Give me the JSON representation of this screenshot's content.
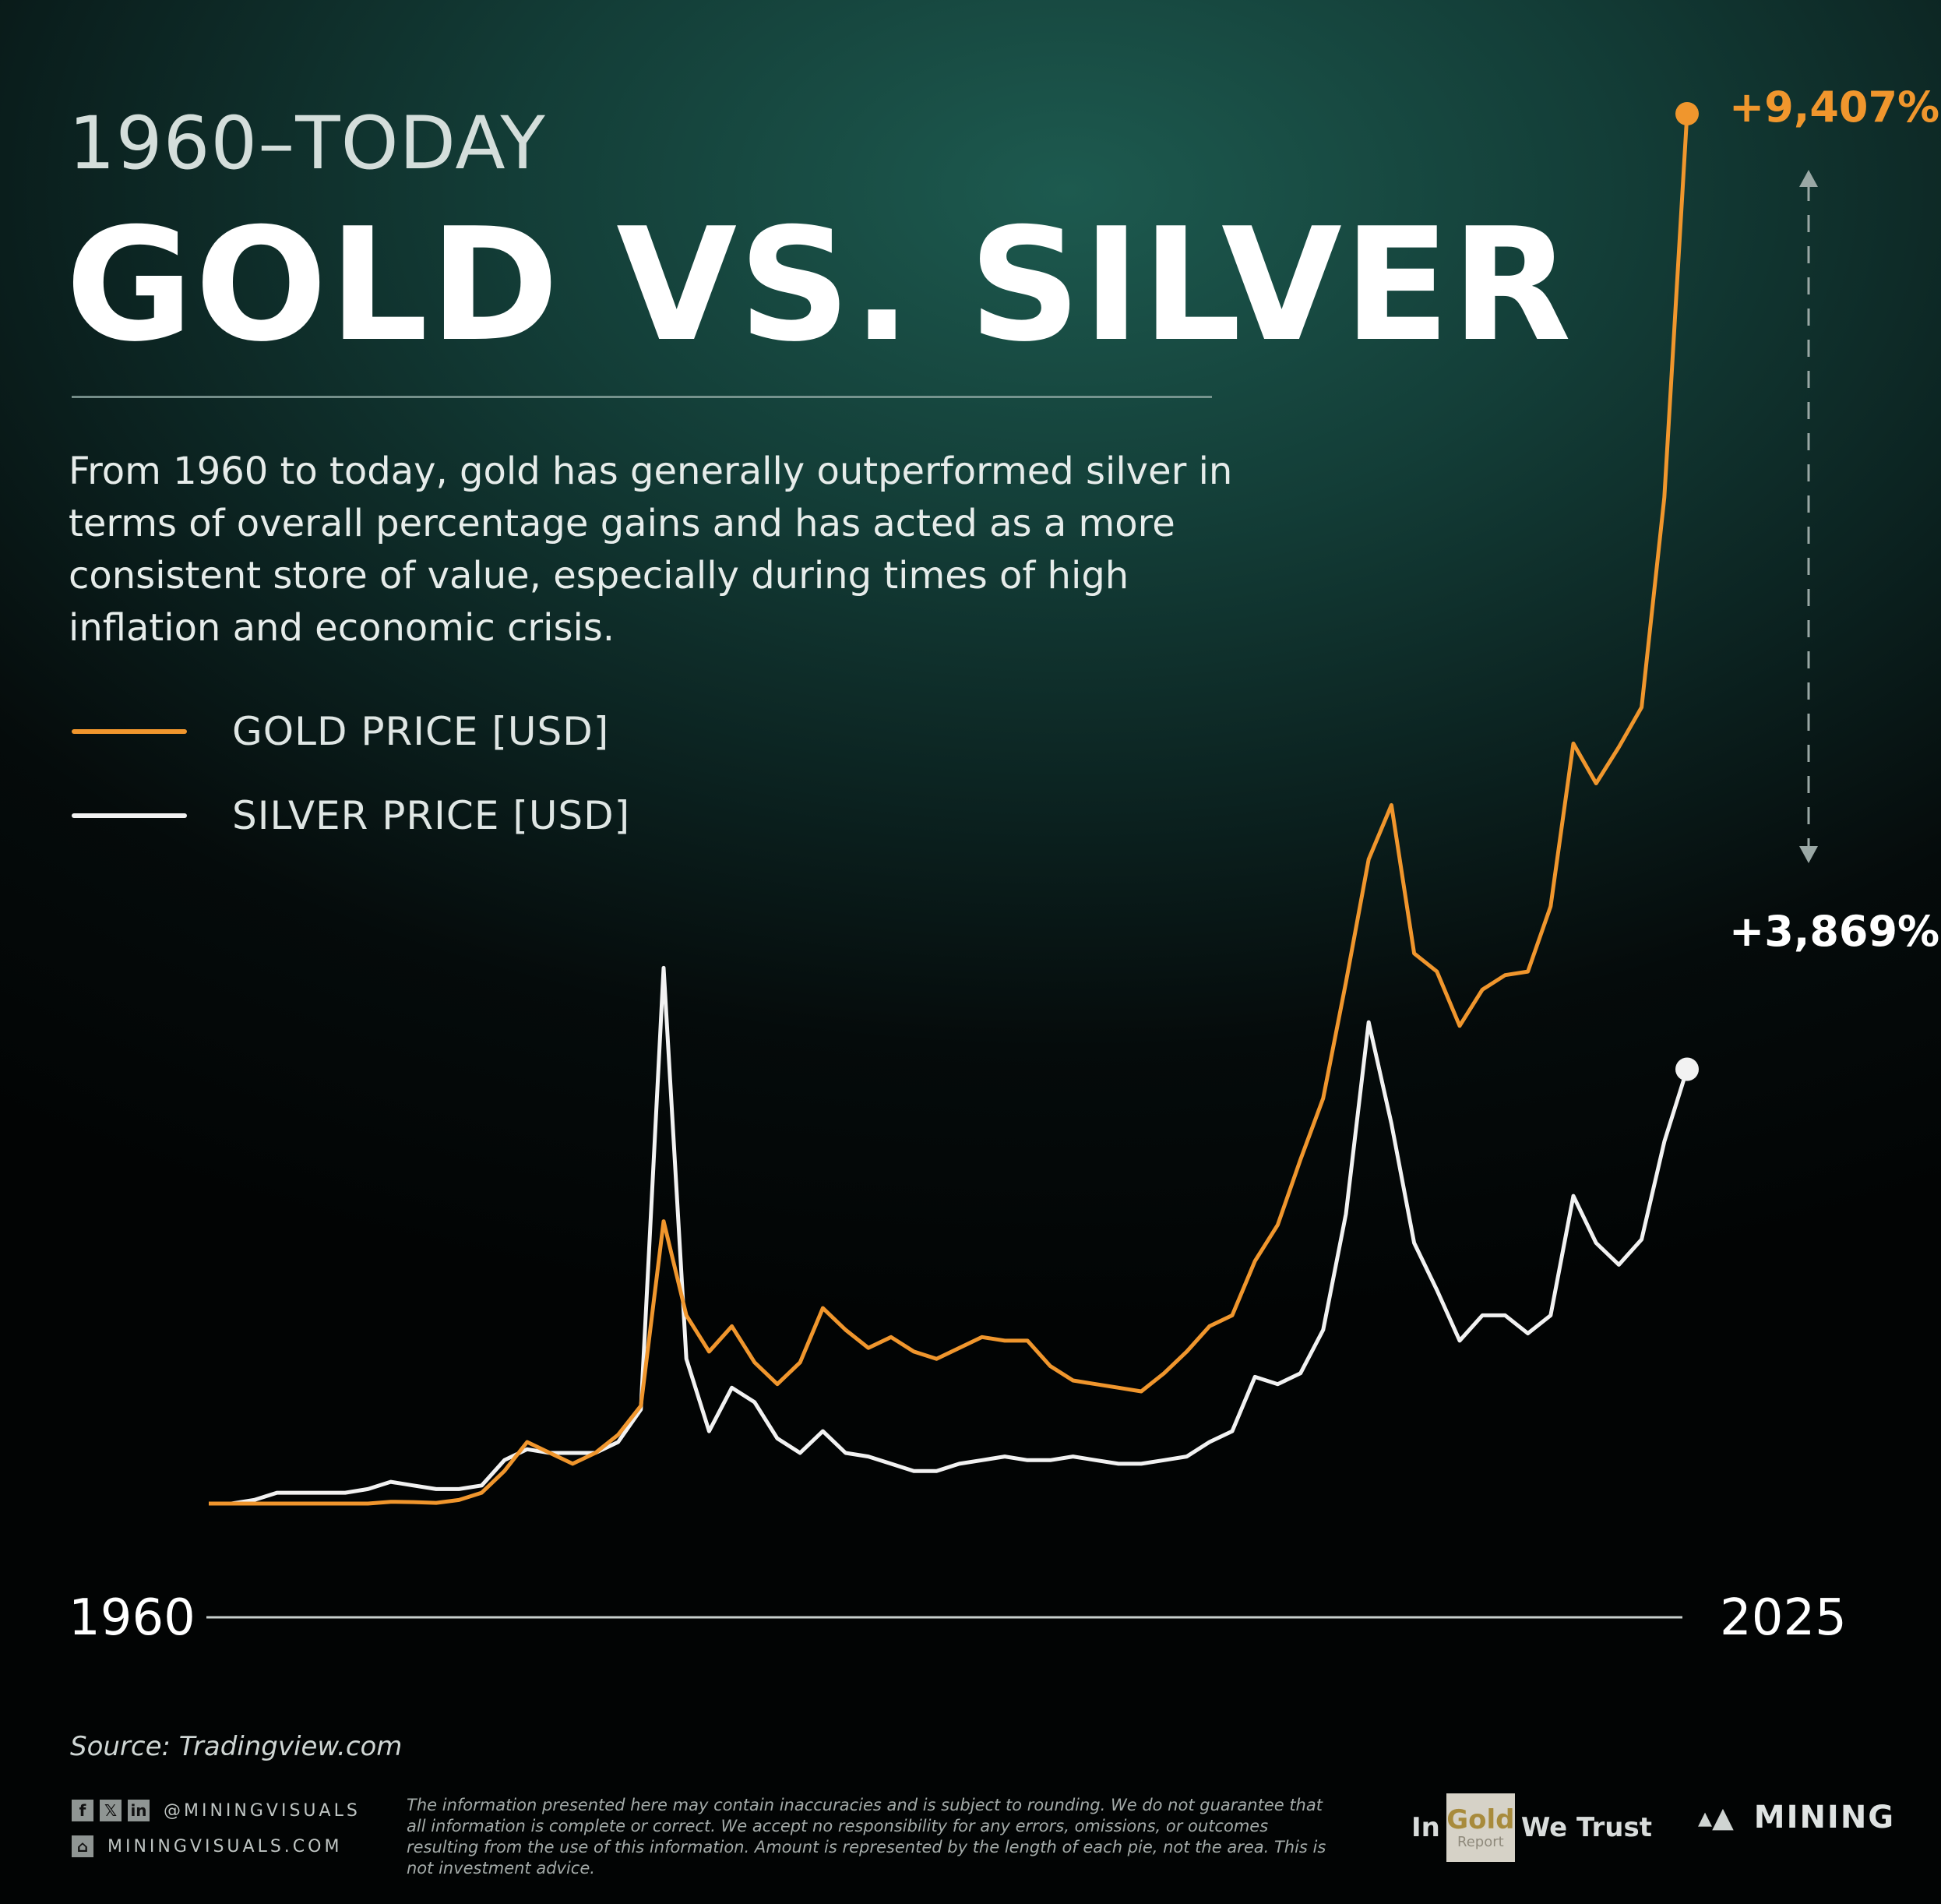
{
  "header": {
    "subtitle": "1960–TODAY",
    "title": "GOLD VS. SILVER",
    "description": "From 1960 to today, gold has generally outperformed silver in terms of overall percentage gains and has acted as a more consistent store of value, especially during times of high inflation and economic crisis."
  },
  "legend": {
    "gold": "GOLD PRICE [USD]",
    "silver": "SILVER PRICE [USD]"
  },
  "colors": {
    "gold": "#f0962d",
    "silver": "#f2f2f2"
  },
  "chart_data": {
    "type": "line",
    "xlabel_start": "1960",
    "xlabel_end": "2025",
    "x": [
      1960,
      1961,
      1962,
      1963,
      1964,
      1965,
      1966,
      1967,
      1968,
      1969,
      1970,
      1971,
      1972,
      1973,
      1974,
      1975,
      1976,
      1977,
      1978,
      1979,
      1980,
      1981,
      1982,
      1983,
      1984,
      1985,
      1986,
      1987,
      1988,
      1989,
      1990,
      1991,
      1992,
      1993,
      1994,
      1995,
      1996,
      1997,
      1998,
      1999,
      2000,
      2001,
      2002,
      2003,
      2004,
      2005,
      2006,
      2007,
      2008,
      2009,
      2010,
      2011,
      2012,
      2013,
      2014,
      2015,
      2016,
      2017,
      2018,
      2019,
      2020,
      2021,
      2022,
      2023,
      2024,
      2025
    ],
    "series": [
      {
        "name": "GOLD PRICE [USD]",
        "end_label": "+9,407%",
        "values": [
          0,
          0,
          0,
          0,
          0,
          0,
          0,
          0,
          0.5,
          0.4,
          0.2,
          1,
          3,
          9,
          17,
          14,
          11,
          14,
          19,
          27,
          78,
          52,
          42,
          49,
          39,
          33,
          39,
          54,
          48,
          43,
          46,
          42,
          40,
          43,
          46,
          45,
          45,
          38,
          34,
          33,
          32,
          31,
          36,
          42,
          49,
          52,
          67,
          77,
          95,
          112,
          144,
          178,
          193,
          152,
          147,
          132,
          142,
          146,
          147,
          165,
          210,
          199,
          209,
          220,
          278,
          384
        ]
      },
      {
        "name": "SILVER PRICE [USD]",
        "end_label": "+3,869%",
        "values": [
          0,
          0,
          1,
          3,
          3,
          3,
          3,
          4,
          6,
          5,
          4,
          4,
          5,
          12,
          15,
          14,
          14,
          14,
          17,
          26,
          148,
          40,
          20,
          32,
          28,
          18,
          14,
          20,
          14,
          13,
          11,
          9,
          9,
          11,
          12,
          13,
          12,
          12,
          13,
          12,
          11,
          11,
          12,
          13,
          17,
          20,
          35,
          33,
          36,
          48,
          80,
          133,
          105,
          72,
          59,
          45,
          52,
          52,
          47,
          52,
          85,
          72,
          66,
          73,
          100,
          120
        ]
      }
    ],
    "annotations": [
      "+9,407%",
      "+3,869%"
    ]
  },
  "footer": {
    "source": "Source: Tradingview.com",
    "handle": "@MININGVISUALS",
    "site": "MININGVISUALS.COM",
    "disclaimer": "The information presented here may contain inaccuracies and is subject to rounding. We do not guarantee that all information is complete or correct. We accept no responsibility for any errors, omissions, or outcomes resulting from the use of this information. Amount is represented by the length of each pie, not the area. This is not investment advice.",
    "logo1_in": "In",
    "logo1_gold": "Gold",
    "logo1_report": "Report",
    "logo1_trust": "We Trust",
    "logo2": "MINING",
    "social_f": "f",
    "social_x": "𝕏",
    "social_in": "in"
  }
}
